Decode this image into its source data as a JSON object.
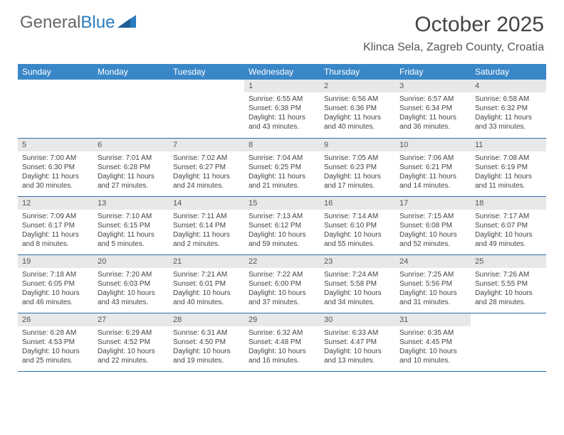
{
  "logo": {
    "part1": "General",
    "part2": "Blue"
  },
  "title": "October 2025",
  "location": "Klinca Sela, Zagreb County, Croatia",
  "colors": {
    "header_bg": "#3a87c8",
    "header_text": "#ffffff",
    "daynum_bg": "#e8e8e8",
    "row_border": "#2a6ea5",
    "body_text": "#444444",
    "logo_gray": "#666666",
    "logo_blue": "#2b7cbf"
  },
  "weekdays": [
    "Sunday",
    "Monday",
    "Tuesday",
    "Wednesday",
    "Thursday",
    "Friday",
    "Saturday"
  ],
  "weeks": [
    [
      {
        "day": "",
        "sunrise": "",
        "sunset": "",
        "daylight1": "",
        "daylight2": ""
      },
      {
        "day": "",
        "sunrise": "",
        "sunset": "",
        "daylight1": "",
        "daylight2": ""
      },
      {
        "day": "",
        "sunrise": "",
        "sunset": "",
        "daylight1": "",
        "daylight2": ""
      },
      {
        "day": "1",
        "sunrise": "Sunrise: 6:55 AM",
        "sunset": "Sunset: 6:38 PM",
        "daylight1": "Daylight: 11 hours",
        "daylight2": "and 43 minutes."
      },
      {
        "day": "2",
        "sunrise": "Sunrise: 6:56 AM",
        "sunset": "Sunset: 6:36 PM",
        "daylight1": "Daylight: 11 hours",
        "daylight2": "and 40 minutes."
      },
      {
        "day": "3",
        "sunrise": "Sunrise: 6:57 AM",
        "sunset": "Sunset: 6:34 PM",
        "daylight1": "Daylight: 11 hours",
        "daylight2": "and 36 minutes."
      },
      {
        "day": "4",
        "sunrise": "Sunrise: 6:58 AM",
        "sunset": "Sunset: 6:32 PM",
        "daylight1": "Daylight: 11 hours",
        "daylight2": "and 33 minutes."
      }
    ],
    [
      {
        "day": "5",
        "sunrise": "Sunrise: 7:00 AM",
        "sunset": "Sunset: 6:30 PM",
        "daylight1": "Daylight: 11 hours",
        "daylight2": "and 30 minutes."
      },
      {
        "day": "6",
        "sunrise": "Sunrise: 7:01 AM",
        "sunset": "Sunset: 6:28 PM",
        "daylight1": "Daylight: 11 hours",
        "daylight2": "and 27 minutes."
      },
      {
        "day": "7",
        "sunrise": "Sunrise: 7:02 AM",
        "sunset": "Sunset: 6:27 PM",
        "daylight1": "Daylight: 11 hours",
        "daylight2": "and 24 minutes."
      },
      {
        "day": "8",
        "sunrise": "Sunrise: 7:04 AM",
        "sunset": "Sunset: 6:25 PM",
        "daylight1": "Daylight: 11 hours",
        "daylight2": "and 21 minutes."
      },
      {
        "day": "9",
        "sunrise": "Sunrise: 7:05 AM",
        "sunset": "Sunset: 6:23 PM",
        "daylight1": "Daylight: 11 hours",
        "daylight2": "and 17 minutes."
      },
      {
        "day": "10",
        "sunrise": "Sunrise: 7:06 AM",
        "sunset": "Sunset: 6:21 PM",
        "daylight1": "Daylight: 11 hours",
        "daylight2": "and 14 minutes."
      },
      {
        "day": "11",
        "sunrise": "Sunrise: 7:08 AM",
        "sunset": "Sunset: 6:19 PM",
        "daylight1": "Daylight: 11 hours",
        "daylight2": "and 11 minutes."
      }
    ],
    [
      {
        "day": "12",
        "sunrise": "Sunrise: 7:09 AM",
        "sunset": "Sunset: 6:17 PM",
        "daylight1": "Daylight: 11 hours",
        "daylight2": "and 8 minutes."
      },
      {
        "day": "13",
        "sunrise": "Sunrise: 7:10 AM",
        "sunset": "Sunset: 6:15 PM",
        "daylight1": "Daylight: 11 hours",
        "daylight2": "and 5 minutes."
      },
      {
        "day": "14",
        "sunrise": "Sunrise: 7:11 AM",
        "sunset": "Sunset: 6:14 PM",
        "daylight1": "Daylight: 11 hours",
        "daylight2": "and 2 minutes."
      },
      {
        "day": "15",
        "sunrise": "Sunrise: 7:13 AM",
        "sunset": "Sunset: 6:12 PM",
        "daylight1": "Daylight: 10 hours",
        "daylight2": "and 59 minutes."
      },
      {
        "day": "16",
        "sunrise": "Sunrise: 7:14 AM",
        "sunset": "Sunset: 6:10 PM",
        "daylight1": "Daylight: 10 hours",
        "daylight2": "and 55 minutes."
      },
      {
        "day": "17",
        "sunrise": "Sunrise: 7:15 AM",
        "sunset": "Sunset: 6:08 PM",
        "daylight1": "Daylight: 10 hours",
        "daylight2": "and 52 minutes."
      },
      {
        "day": "18",
        "sunrise": "Sunrise: 7:17 AM",
        "sunset": "Sunset: 6:07 PM",
        "daylight1": "Daylight: 10 hours",
        "daylight2": "and 49 minutes."
      }
    ],
    [
      {
        "day": "19",
        "sunrise": "Sunrise: 7:18 AM",
        "sunset": "Sunset: 6:05 PM",
        "daylight1": "Daylight: 10 hours",
        "daylight2": "and 46 minutes."
      },
      {
        "day": "20",
        "sunrise": "Sunrise: 7:20 AM",
        "sunset": "Sunset: 6:03 PM",
        "daylight1": "Daylight: 10 hours",
        "daylight2": "and 43 minutes."
      },
      {
        "day": "21",
        "sunrise": "Sunrise: 7:21 AM",
        "sunset": "Sunset: 6:01 PM",
        "daylight1": "Daylight: 10 hours",
        "daylight2": "and 40 minutes."
      },
      {
        "day": "22",
        "sunrise": "Sunrise: 7:22 AM",
        "sunset": "Sunset: 6:00 PM",
        "daylight1": "Daylight: 10 hours",
        "daylight2": "and 37 minutes."
      },
      {
        "day": "23",
        "sunrise": "Sunrise: 7:24 AM",
        "sunset": "Sunset: 5:58 PM",
        "daylight1": "Daylight: 10 hours",
        "daylight2": "and 34 minutes."
      },
      {
        "day": "24",
        "sunrise": "Sunrise: 7:25 AM",
        "sunset": "Sunset: 5:56 PM",
        "daylight1": "Daylight: 10 hours",
        "daylight2": "and 31 minutes."
      },
      {
        "day": "25",
        "sunrise": "Sunrise: 7:26 AM",
        "sunset": "Sunset: 5:55 PM",
        "daylight1": "Daylight: 10 hours",
        "daylight2": "and 28 minutes."
      }
    ],
    [
      {
        "day": "26",
        "sunrise": "Sunrise: 6:28 AM",
        "sunset": "Sunset: 4:53 PM",
        "daylight1": "Daylight: 10 hours",
        "daylight2": "and 25 minutes."
      },
      {
        "day": "27",
        "sunrise": "Sunrise: 6:29 AM",
        "sunset": "Sunset: 4:52 PM",
        "daylight1": "Daylight: 10 hours",
        "daylight2": "and 22 minutes."
      },
      {
        "day": "28",
        "sunrise": "Sunrise: 6:31 AM",
        "sunset": "Sunset: 4:50 PM",
        "daylight1": "Daylight: 10 hours",
        "daylight2": "and 19 minutes."
      },
      {
        "day": "29",
        "sunrise": "Sunrise: 6:32 AM",
        "sunset": "Sunset: 4:48 PM",
        "daylight1": "Daylight: 10 hours",
        "daylight2": "and 16 minutes."
      },
      {
        "day": "30",
        "sunrise": "Sunrise: 6:33 AM",
        "sunset": "Sunset: 4:47 PM",
        "daylight1": "Daylight: 10 hours",
        "daylight2": "and 13 minutes."
      },
      {
        "day": "31",
        "sunrise": "Sunrise: 6:35 AM",
        "sunset": "Sunset: 4:45 PM",
        "daylight1": "Daylight: 10 hours",
        "daylight2": "and 10 minutes."
      },
      {
        "day": "",
        "sunrise": "",
        "sunset": "",
        "daylight1": "",
        "daylight2": ""
      }
    ]
  ]
}
